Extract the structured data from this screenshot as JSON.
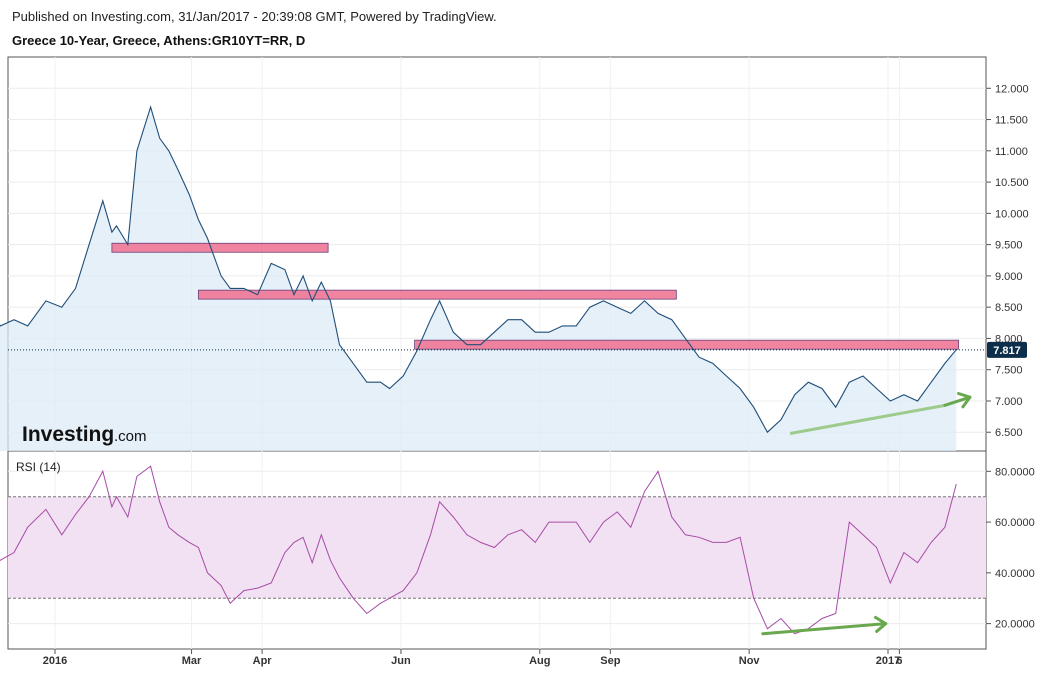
{
  "header": {
    "published": "Published on Investing.com, 31/Jan/2017 - 20:39:08 GMT, Powered by TradingView.",
    "symbol": "Greece 10-Year, Greece, Athens:GR10YT=RR, D"
  },
  "logo": {
    "main": "Investing",
    "domain": ".com"
  },
  "colors": {
    "price_line": "#1f4e79",
    "price_fill": "#deebf7",
    "rsi_line": "#a64ca6",
    "rsi_band": "#f2e1f2",
    "resistance": "#f07896",
    "support_band": "#e6b4c8",
    "arrow": "#6aa84f",
    "last_badge": "#0d2e4a"
  },
  "chart_data": [
    {
      "type": "line",
      "name": "price",
      "y_ticks": [
        "12.000",
        "11.500",
        "11.000",
        "10.500",
        "10.000",
        "9.500",
        "9.000",
        "8.500",
        "8.000",
        "7.500",
        "7.000",
        "6.500"
      ],
      "ylim": [
        6.2,
        12.5
      ],
      "last_value": "7.817",
      "x": [
        "2015-12-02",
        "2015-12-08",
        "2015-12-14",
        "2015-12-20",
        "2015-12-28",
        "2016-01-04",
        "2016-01-10",
        "2016-01-16",
        "2016-01-22",
        "2016-01-26",
        "2016-01-28",
        "2016-02-02",
        "2016-02-06",
        "2016-02-12",
        "2016-02-16",
        "2016-02-20",
        "2016-02-24",
        "2016-02-29",
        "2016-03-04",
        "2016-03-08",
        "2016-03-14",
        "2016-03-18",
        "2016-03-24",
        "2016-03-30",
        "2016-04-05",
        "2016-04-11",
        "2016-04-15",
        "2016-04-19",
        "2016-04-23",
        "2016-04-27",
        "2016-05-01",
        "2016-05-05",
        "2016-05-11",
        "2016-05-17",
        "2016-05-23",
        "2016-05-27",
        "2016-06-02",
        "2016-06-08",
        "2016-06-14",
        "2016-06-18",
        "2016-06-24",
        "2016-06-30",
        "2016-07-06",
        "2016-07-12",
        "2016-07-18",
        "2016-07-24",
        "2016-07-30",
        "2016-08-05",
        "2016-08-11",
        "2016-08-17",
        "2016-08-23",
        "2016-08-29",
        "2016-09-04",
        "2016-09-10",
        "2016-09-16",
        "2016-09-22",
        "2016-09-28",
        "2016-10-04",
        "2016-10-10",
        "2016-10-16",
        "2016-10-22",
        "2016-10-28",
        "2016-11-03",
        "2016-11-09",
        "2016-11-15",
        "2016-11-21",
        "2016-11-27",
        "2016-12-03",
        "2016-12-09",
        "2016-12-15",
        "2016-12-21",
        "2016-12-27",
        "2017-01-02",
        "2017-01-08",
        "2017-01-14",
        "2017-01-20",
        "2017-01-26",
        "2017-01-31"
      ],
      "values": [
        8.5,
        8.2,
        8.3,
        8.2,
        8.6,
        8.5,
        8.8,
        9.5,
        10.2,
        9.7,
        9.8,
        9.5,
        11.0,
        11.7,
        11.2,
        11.0,
        10.7,
        10.3,
        9.9,
        9.6,
        9.0,
        8.8,
        8.8,
        8.7,
        9.2,
        9.1,
        8.7,
        9.0,
        8.6,
        8.9,
        8.6,
        7.9,
        7.6,
        7.3,
        7.3,
        7.2,
        7.4,
        7.8,
        8.3,
        8.6,
        8.1,
        7.9,
        7.9,
        8.1,
        8.3,
        8.3,
        8.1,
        8.1,
        8.2,
        8.2,
        8.5,
        8.6,
        8.5,
        8.4,
        8.6,
        8.4,
        8.3,
        8.0,
        7.7,
        7.6,
        7.4,
        7.2,
        6.9,
        6.5,
        6.7,
        7.1,
        7.3,
        7.2,
        6.9,
        7.3,
        7.4,
        7.2,
        7.0,
        7.1,
        7.0,
        7.3,
        7.6,
        7.82
      ]
    },
    {
      "type": "line",
      "name": "RSI (14)",
      "label": "RSI (14)",
      "y_ticks": [
        "80.0000",
        "60.0000",
        "40.0000",
        "20.0000"
      ],
      "ylim": [
        10,
        88
      ],
      "band": [
        30,
        70
      ],
      "x": [
        "2015-12-02",
        "2015-12-08",
        "2015-12-14",
        "2015-12-20",
        "2015-12-28",
        "2016-01-04",
        "2016-01-10",
        "2016-01-16",
        "2016-01-22",
        "2016-01-26",
        "2016-01-28",
        "2016-02-02",
        "2016-02-06",
        "2016-02-12",
        "2016-02-16",
        "2016-02-20",
        "2016-02-24",
        "2016-02-29",
        "2016-03-04",
        "2016-03-08",
        "2016-03-14",
        "2016-03-18",
        "2016-03-24",
        "2016-03-30",
        "2016-04-05",
        "2016-04-11",
        "2016-04-15",
        "2016-04-19",
        "2016-04-23",
        "2016-04-27",
        "2016-05-01",
        "2016-05-05",
        "2016-05-11",
        "2016-05-17",
        "2016-05-23",
        "2016-05-27",
        "2016-06-02",
        "2016-06-08",
        "2016-06-14",
        "2016-06-18",
        "2016-06-24",
        "2016-06-30",
        "2016-07-06",
        "2016-07-12",
        "2016-07-18",
        "2016-07-24",
        "2016-07-30",
        "2016-08-05",
        "2016-08-11",
        "2016-08-17",
        "2016-08-23",
        "2016-08-29",
        "2016-09-04",
        "2016-09-10",
        "2016-09-16",
        "2016-09-22",
        "2016-09-28",
        "2016-10-04",
        "2016-10-10",
        "2016-10-16",
        "2016-10-22",
        "2016-10-28",
        "2016-11-03",
        "2016-11-09",
        "2016-11-15",
        "2016-11-21",
        "2016-11-27",
        "2016-12-03",
        "2016-12-09",
        "2016-12-15",
        "2016-12-21",
        "2016-12-27",
        "2017-01-02",
        "2017-01-08",
        "2017-01-14",
        "2017-01-20",
        "2017-01-26",
        "2017-01-31"
      ],
      "values": [
        40,
        45,
        48,
        58,
        65,
        55,
        63,
        70,
        80,
        66,
        70,
        62,
        78,
        82,
        68,
        58,
        55,
        52,
        50,
        40,
        35,
        28,
        33,
        34,
        36,
        48,
        52,
        54,
        44,
        55,
        45,
        38,
        30,
        24,
        28,
        30,
        33,
        40,
        55,
        68,
        62,
        55,
        52,
        50,
        55,
        57,
        52,
        60,
        60,
        60,
        52,
        60,
        64,
        58,
        72,
        80,
        62,
        55,
        54,
        52,
        52,
        54,
        30,
        18,
        22,
        16,
        18,
        22,
        24,
        60,
        55,
        50,
        36,
        48,
        44,
        52,
        58,
        75
      ]
    },
    {
      "type": "annotations",
      "resistance_zones": [
        {
          "y": 9.45,
          "x_start": "2016-01-26",
          "x_end": "2016-04-30"
        },
        {
          "y": 8.7,
          "x_start": "2016-03-04",
          "x_end": "2016-09-30"
        },
        {
          "y": 7.9,
          "x_start": "2016-06-07",
          "x_end": "2017-02-01"
        }
      ],
      "price_trendline": {
        "from": {
          "x": "2016-11-19",
          "y": 6.48
        },
        "to": {
          "x": "2017-01-26",
          "y": 6.93
        }
      },
      "price_arrow": {
        "from": {
          "x": "2017-01-26",
          "y": 6.93
        },
        "to": {
          "x": "2017-02-06",
          "y": 7.06
        }
      },
      "rsi_arrow": {
        "from": {
          "x": "2016-11-07",
          "y": 16
        },
        "to": {
          "x": "2016-12-31",
          "y": 20
        }
      }
    }
  ],
  "x_axis": {
    "ticks": [
      {
        "label": "2016",
        "date": "2016-01-01"
      },
      {
        "label": "Mar",
        "date": "2016-03-01"
      },
      {
        "label": "Apr",
        "date": "2016-04-01"
      },
      {
        "label": "Jun",
        "date": "2016-06-01"
      },
      {
        "label": "Aug",
        "date": "2016-08-01"
      },
      {
        "label": "Sep",
        "date": "2016-09-01"
      },
      {
        "label": "Nov",
        "date": "2016-11-01"
      },
      {
        "label": "2017",
        "date": "2017-01-01"
      },
      {
        "label": "6",
        "date": "2017-01-06"
      }
    ]
  }
}
